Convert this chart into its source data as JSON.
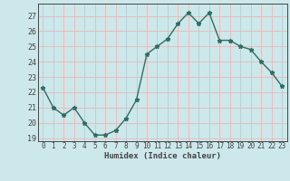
{
  "x": [
    0,
    1,
    2,
    3,
    4,
    5,
    6,
    7,
    8,
    9,
    10,
    11,
    12,
    13,
    14,
    15,
    16,
    17,
    18,
    19,
    20,
    21,
    22,
    23
  ],
  "y": [
    22.3,
    21.0,
    20.5,
    21.0,
    20.0,
    19.2,
    19.2,
    19.5,
    20.3,
    21.5,
    24.5,
    25.0,
    25.5,
    26.5,
    27.2,
    26.5,
    27.2,
    25.4,
    25.4,
    25.0,
    24.8,
    24.0,
    23.3,
    22.4
  ],
  "xlabel": "Humidex (Indice chaleur)",
  "ylim": [
    18.8,
    27.8
  ],
  "xlim": [
    -0.5,
    23.5
  ],
  "yticks": [
    19,
    20,
    21,
    22,
    23,
    24,
    25,
    26,
    27
  ],
  "xticks": [
    0,
    1,
    2,
    3,
    4,
    5,
    6,
    7,
    8,
    9,
    10,
    11,
    12,
    13,
    14,
    15,
    16,
    17,
    18,
    19,
    20,
    21,
    22,
    23
  ],
  "line_color": "#2e6e65",
  "marker": "*",
  "marker_size": 3.5,
  "bg_color": "#cce8ea",
  "grid_color_v": "#e8b8b8",
  "grid_color_h": "#e8b8b8",
  "axis_color": "#444444",
  "line_width": 1.0
}
